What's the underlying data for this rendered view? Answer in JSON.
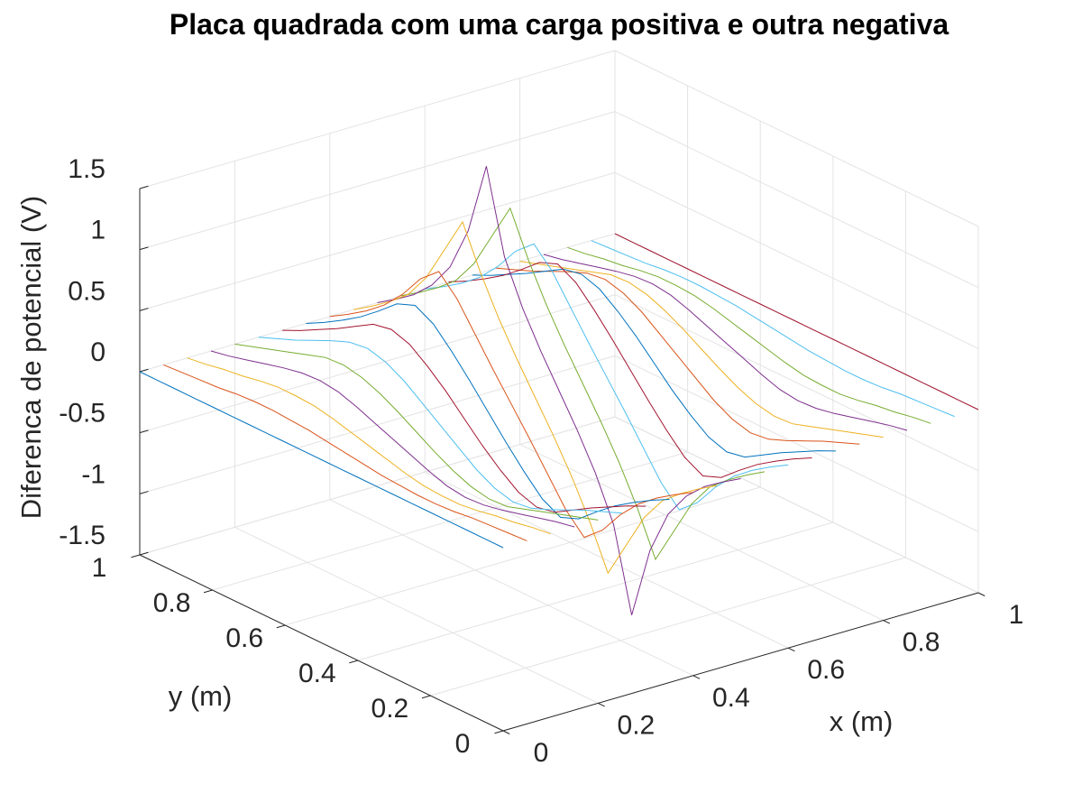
{
  "chart_data": {
    "type": "line",
    "projection": "3d",
    "title": "Placa quadrada com uma carga positiva e outra negativa",
    "xlabel": "x (m)",
    "ylabel": "y (m)",
    "zlabel": "Diferenca de potencial (V)",
    "xlim": [
      0,
      1
    ],
    "ylim": [
      0,
      1
    ],
    "zlim": [
      -1.5,
      1.5
    ],
    "xticks": [
      0,
      0.2,
      0.4,
      0.6,
      0.8,
      1
    ],
    "yticks": [
      0,
      0.2,
      0.4,
      0.6,
      0.8,
      1
    ],
    "zticks": [
      -1.5,
      -1,
      -0.5,
      0,
      0.5,
      1,
      1.5
    ],
    "xtick_labels": [
      "0",
      "0.2",
      "0.4",
      "0.6",
      "0.8",
      "1"
    ],
    "ytick_labels": [
      "0",
      "0.2",
      "0.4",
      "0.6",
      "0.8",
      "1"
    ],
    "ztick_labels": [
      "-1.5",
      "-1",
      "-0.5",
      "0",
      "0.5",
      "1",
      "1.5"
    ],
    "grid": true,
    "series_colors": [
      "#0072bd",
      "#d95319",
      "#edb120",
      "#7e2f8e",
      "#77ac30",
      "#4dbeee",
      "#a2142f"
    ],
    "lines_at_x": [
      0,
      0.05,
      0.1,
      0.15,
      0.2,
      0.25,
      0.3,
      0.35,
      0.4,
      0.45,
      0.5,
      0.55,
      0.6,
      0.65,
      0.7,
      0.75,
      0.8,
      0.85,
      0.9,
      0.95,
      1
    ],
    "y_values": [
      0,
      0.05,
      0.1,
      0.15,
      0.2,
      0.25,
      0.3,
      0.35,
      0.4,
      0.45,
      0.5,
      0.55,
      0.6,
      0.65,
      0.7,
      0.75,
      0.8,
      0.85,
      0.9,
      0.95,
      1
    ],
    "z_values": [
      [
        0,
        0,
        0,
        0,
        0,
        0,
        0,
        0,
        0,
        0,
        0,
        0,
        0,
        0,
        0,
        0,
        0,
        0,
        0,
        0,
        0
      ],
      [
        0,
        -0.01,
        -0.02,
        -0.03,
        -0.05,
        -0.06,
        -0.06,
        -0.05,
        -0.04,
        -0.02,
        0,
        0.02,
        0.04,
        0.05,
        0.06,
        0.06,
        0.05,
        0.03,
        0.02,
        0.01,
        0
      ],
      [
        0,
        -0.02,
        -0.05,
        -0.07,
        -0.1,
        -0.12,
        -0.12,
        -0.11,
        -0.08,
        -0.04,
        0,
        0.04,
        0.08,
        0.11,
        0.12,
        0.12,
        0.1,
        0.07,
        0.05,
        0.02,
        0
      ],
      [
        0,
        -0.03,
        -0.07,
        -0.11,
        -0.15,
        -0.18,
        -0.19,
        -0.17,
        -0.12,
        -0.06,
        0,
        0.06,
        0.12,
        0.17,
        0.19,
        0.18,
        0.15,
        0.11,
        0.07,
        0.03,
        0
      ],
      [
        0,
        -0.05,
        -0.1,
        -0.15,
        -0.2,
        -0.25,
        -0.26,
        -0.23,
        -0.17,
        -0.09,
        0,
        0.09,
        0.17,
        0.23,
        0.26,
        0.25,
        0.2,
        0.15,
        0.1,
        0.05,
        0
      ],
      [
        0,
        -0.06,
        -0.12,
        -0.19,
        -0.26,
        -0.32,
        -0.34,
        -0.3,
        -0.22,
        -0.11,
        0,
        0.11,
        0.22,
        0.3,
        0.34,
        0.32,
        0.26,
        0.19,
        0.12,
        0.06,
        0
      ],
      [
        0,
        -0.07,
        -0.15,
        -0.23,
        -0.32,
        -0.41,
        -0.44,
        -0.39,
        -0.28,
        -0.15,
        0,
        0.15,
        0.28,
        0.39,
        0.44,
        0.41,
        0.32,
        0.23,
        0.15,
        0.07,
        0
      ],
      [
        0,
        -0.08,
        -0.17,
        -0.27,
        -0.39,
        -0.52,
        -0.58,
        -0.5,
        -0.35,
        -0.18,
        0,
        0.18,
        0.35,
        0.5,
        0.58,
        0.52,
        0.39,
        0.27,
        0.17,
        0.08,
        0
      ],
      [
        0,
        -0.09,
        -0.19,
        -0.31,
        -0.47,
        -0.67,
        -0.8,
        -0.65,
        -0.43,
        -0.21,
        0,
        0.21,
        0.43,
        0.65,
        0.8,
        0.67,
        0.47,
        0.31,
        0.19,
        0.09,
        0
      ],
      [
        0,
        -0.1,
        -0.21,
        -0.34,
        -0.55,
        -0.85,
        -1.15,
        -0.8,
        -0.5,
        -0.24,
        0,
        0.24,
        0.5,
        0.8,
        1.15,
        0.85,
        0.55,
        0.34,
        0.21,
        0.1,
        0
      ],
      [
        0,
        -0.1,
        -0.21,
        -0.36,
        -0.58,
        -0.95,
        -1.55,
        -0.88,
        -0.53,
        -0.25,
        0,
        0.25,
        0.53,
        0.88,
        1.55,
        0.95,
        0.58,
        0.36,
        0.21,
        0.1,
        0
      ],
      [
        0,
        -0.1,
        -0.21,
        -0.34,
        -0.55,
        -0.85,
        -1.15,
        -0.8,
        -0.5,
        -0.24,
        0,
        0.24,
        0.5,
        0.8,
        1.15,
        0.85,
        0.55,
        0.34,
        0.21,
        0.1,
        0
      ],
      [
        0,
        -0.09,
        -0.19,
        -0.31,
        -0.47,
        -0.67,
        -0.8,
        -0.65,
        -0.43,
        -0.21,
        0,
        0.21,
        0.43,
        0.65,
        0.8,
        0.67,
        0.47,
        0.31,
        0.19,
        0.09,
        0
      ],
      [
        0,
        -0.08,
        -0.17,
        -0.27,
        -0.39,
        -0.52,
        -0.58,
        -0.5,
        -0.35,
        -0.18,
        0,
        0.18,
        0.35,
        0.5,
        0.58,
        0.52,
        0.39,
        0.27,
        0.17,
        0.08,
        0
      ],
      [
        0,
        -0.07,
        -0.15,
        -0.23,
        -0.32,
        -0.41,
        -0.44,
        -0.39,
        -0.28,
        -0.15,
        0,
        0.15,
        0.28,
        0.39,
        0.44,
        0.41,
        0.32,
        0.23,
        0.15,
        0.07,
        0
      ],
      [
        0,
        -0.06,
        -0.12,
        -0.19,
        -0.26,
        -0.32,
        -0.34,
        -0.3,
        -0.22,
        -0.11,
        0,
        0.11,
        0.22,
        0.3,
        0.34,
        0.32,
        0.26,
        0.19,
        0.12,
        0.06,
        0
      ],
      [
        0,
        -0.05,
        -0.1,
        -0.15,
        -0.2,
        -0.25,
        -0.26,
        -0.23,
        -0.17,
        -0.09,
        0,
        0.09,
        0.17,
        0.23,
        0.26,
        0.25,
        0.2,
        0.15,
        0.1,
        0.05,
        0
      ],
      [
        0,
        -0.03,
        -0.07,
        -0.11,
        -0.15,
        -0.18,
        -0.19,
        -0.17,
        -0.12,
        -0.06,
        0,
        0.06,
        0.12,
        0.17,
        0.19,
        0.18,
        0.15,
        0.11,
        0.07,
        0.03,
        0
      ],
      [
        0,
        -0.02,
        -0.05,
        -0.07,
        -0.1,
        -0.12,
        -0.12,
        -0.11,
        -0.08,
        -0.04,
        0,
        0.04,
        0.08,
        0.11,
        0.12,
        0.12,
        0.1,
        0.07,
        0.05,
        0.02,
        0
      ],
      [
        0,
        -0.01,
        -0.02,
        -0.03,
        -0.05,
        -0.06,
        -0.06,
        -0.05,
        -0.04,
        -0.02,
        0,
        0.02,
        0.04,
        0.05,
        0.06,
        0.06,
        0.05,
        0.03,
        0.02,
        0.01,
        0
      ],
      [
        0,
        0,
        0,
        0,
        0,
        0,
        0,
        0,
        0,
        0,
        0,
        0,
        0,
        0,
        0,
        0,
        0,
        0,
        0,
        0,
        0
      ]
    ]
  }
}
